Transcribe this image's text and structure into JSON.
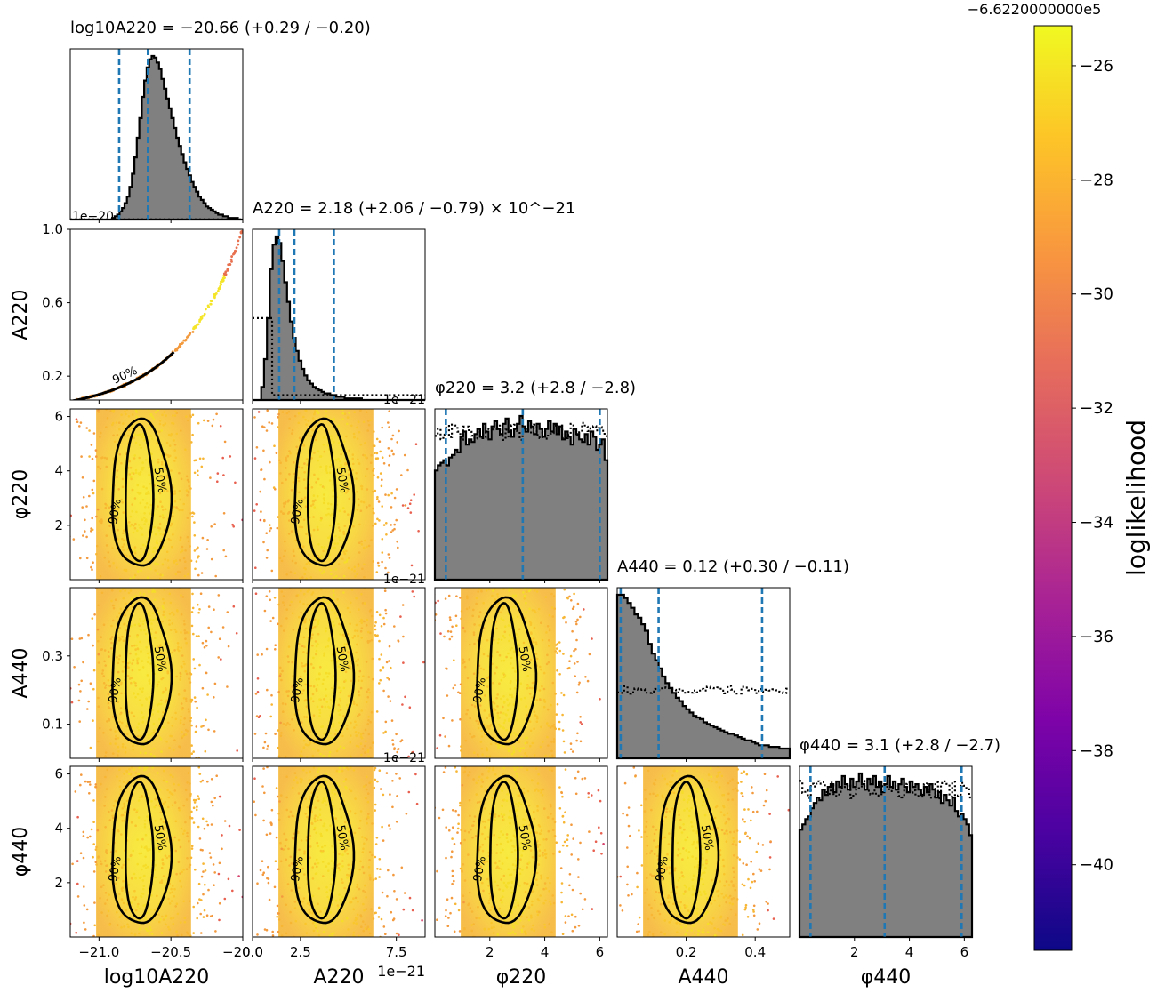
{
  "chart_data": {
    "type": "corner",
    "parameters": [
      "log10A220",
      "A220",
      "phi220",
      "A440",
      "phi440"
    ],
    "axis_labels": {
      "log10A220": "log10A220",
      "A220": "A220",
      "phi220": "φ220",
      "A440": "A440",
      "phi440": "φ440"
    },
    "diag_titles": {
      "log10A220": "log10A220 = −20.66 (+0.29 / −0.20)",
      "A220": "A220 = 2.18 (+2.06 / −0.79) × 10^−21",
      "phi220": "φ220 = 3.2 (+2.8 / −2.8)",
      "A440": "A440 = 0.12 (+0.30 / −0.11)",
      "phi440": "φ440 = 3.1 (+2.8 / −2.7)"
    },
    "ranges": {
      "log10A220": [
        -21.2,
        -20.0
      ],
      "A220": [
        0.0,
        9.0
      ],
      "phi220": [
        0.0,
        6.28
      ],
      "A440": [
        0.0,
        0.5
      ],
      "phi440": [
        0.0,
        6.28
      ]
    },
    "y_ranges": {
      "A220": [
        0.07,
        1.0
      ],
      "phi220": [
        0.0,
        6.28
      ],
      "A440": [
        0.0,
        0.5
      ],
      "phi440": [
        0.0,
        6.28
      ]
    },
    "x_ticks": {
      "log10A220": [
        -21.0,
        -20.5,
        -20.0
      ],
      "A220": [
        0.0,
        2.5,
        7.5
      ],
      "phi220": [
        2,
        4,
        6
      ],
      "A440": [
        0.2,
        0.4
      ],
      "phi440": [
        2,
        4,
        6
      ]
    },
    "x_tick_labels": {
      "log10A220": [
        "−21.0",
        "−20.5",
        "−20.0"
      ],
      "A220": [
        "0.0",
        "2.5",
        "7.5"
      ],
      "phi220": [
        "2",
        "4",
        "6"
      ],
      "A440": [
        "0.2",
        "0.4"
      ],
      "phi440": [
        "2",
        "4",
        "6"
      ]
    },
    "y_ticks": {
      "A220": [
        0.2,
        0.6,
        1.0
      ],
      "phi220": [
        2,
        4,
        6
      ],
      "A440": [
        0.1,
        0.3
      ],
      "phi440": [
        2,
        4,
        6
      ]
    },
    "y_tick_labels": {
      "A220": [
        "0.2",
        "0.6",
        "1.0"
      ],
      "phi220": [
        "2",
        "4",
        "6"
      ],
      "A440": [
        "0.1",
        "0.3"
      ],
      "phi440": [
        "2",
        "4",
        "6"
      ]
    },
    "offset_texts": {
      "top_left_y": "1e−20",
      "a220_x_row2": "1e−21",
      "a220_x_row3": "1e−21",
      "a220_x_row4": "1e−21",
      "a220_x_bottom": "1e−21"
    },
    "diag_quantiles": {
      "log10A220": [
        -20.86,
        -20.66,
        -20.37
      ],
      "A220": [
        1.39,
        2.18,
        4.24
      ],
      "phi220": [
        0.4,
        3.2,
        6.0
      ],
      "A440": [
        0.01,
        0.12,
        0.42
      ],
      "phi440": [
        0.4,
        3.1,
        5.9
      ]
    },
    "diag_histograms": {
      "log10A220": {
        "bin_edges": [
          -21.2,
          -20.0
        ],
        "counts": [
          0,
          0,
          0,
          0,
          0,
          0,
          0,
          0,
          0,
          0,
          0,
          0,
          0,
          0,
          0,
          0,
          0,
          1,
          2,
          3,
          5,
          7,
          10,
          14,
          20,
          28,
          38,
          50,
          62,
          75,
          85,
          93,
          98,
          100,
          99,
          96,
          92,
          86,
          80,
          74,
          68,
          62,
          56,
          50,
          45,
          40,
          35,
          31,
          27,
          23,
          20,
          17,
          14,
          12,
          10,
          8,
          7,
          6,
          5,
          4,
          3,
          3,
          2,
          2,
          1,
          1,
          1,
          1,
          0,
          0
        ],
        "prior": 0.06
      },
      "A220": {
        "bin_edges": [
          0.0,
          9.0
        ],
        "counts": [
          0,
          0,
          0,
          8,
          25,
          50,
          80,
          95,
          100,
          96,
          85,
          72,
          60,
          48,
          38,
          30,
          24,
          19,
          15,
          12,
          10,
          8,
          7,
          6,
          5,
          4,
          4,
          3,
          3,
          2,
          2,
          2,
          1,
          1,
          1,
          1,
          1,
          1,
          0,
          0,
          0,
          0,
          0,
          0,
          0,
          0,
          0,
          0,
          0,
          0,
          0,
          0,
          0,
          0,
          0,
          0,
          0,
          0,
          0,
          0
        ],
        "prior": [
          0.48,
          0.03
        ]
      },
      "phi220": {
        "bin_edges": [
          0.0,
          6.28
        ],
        "counts": [
          42,
          44,
          45,
          46,
          44,
          47,
          48,
          50,
          49,
          55,
          57,
          52,
          54,
          53,
          56,
          58,
          55,
          60,
          57,
          54,
          59,
          61,
          58,
          56,
          60,
          62,
          57,
          55,
          58,
          60,
          63,
          59,
          57,
          61,
          59,
          56,
          60,
          58,
          55,
          58,
          61,
          57,
          60,
          56,
          59,
          54,
          57,
          55,
          52,
          58,
          56,
          54,
          53,
          56,
          52,
          57,
          55,
          50,
          52,
          54,
          46
        ],
        "prior": 57
      },
      "A440": {
        "bin_edges": [
          0.0,
          0.5
        ],
        "counts": [
          100,
          100,
          98,
          95,
          92,
          88,
          86,
          82,
          78,
          70,
          64,
          60,
          55,
          50,
          46,
          43,
          40,
          37,
          35,
          32,
          30,
          28,
          26,
          25,
          24,
          22,
          21,
          20,
          19,
          18,
          17,
          16,
          15,
          15,
          14,
          13,
          12,
          11,
          11,
          10,
          9,
          8,
          8,
          8,
          7,
          7,
          7,
          6,
          6,
          6
        ],
        "prior": 42
      },
      "phi440": {
        "bin_edges": [
          0.0,
          6.28
        ],
        "counts": [
          40,
          42,
          44,
          45,
          48,
          50,
          52,
          51,
          55,
          53,
          56,
          57,
          54,
          58,
          56,
          60,
          57,
          55,
          59,
          56,
          58,
          61,
          57,
          55,
          59,
          57,
          60,
          56,
          58,
          54,
          57,
          60,
          56,
          58,
          55,
          57,
          59,
          56,
          54,
          58,
          56,
          57,
          55,
          53,
          56,
          54,
          57,
          55,
          52,
          54,
          50,
          53,
          51,
          49,
          52,
          47,
          45,
          46,
          44,
          42,
          38
        ],
        "prior": 55
      }
    },
    "contour_levels": [
      "50%",
      "90%"
    ],
    "colorbar": {
      "label": "loglikelihood",
      "offset_label": "−6.6220000000e5",
      "colormap": "plasma",
      "range": [
        -41.5,
        -25.3
      ],
      "ticks": [
        -26,
        -28,
        -30,
        -32,
        -34,
        -36,
        -38,
        -40
      ],
      "tick_labels": [
        "−26",
        "−28",
        "−30",
        "−32",
        "−34",
        "−36",
        "−38",
        "−40"
      ]
    },
    "colors": {
      "hist_fill": "#808080",
      "hist_line": "#000000",
      "quantile_line": "#1f77b4",
      "contour": "#000000",
      "scatter_high": "#f5dd2a",
      "scatter_low": "#e8604f"
    }
  }
}
